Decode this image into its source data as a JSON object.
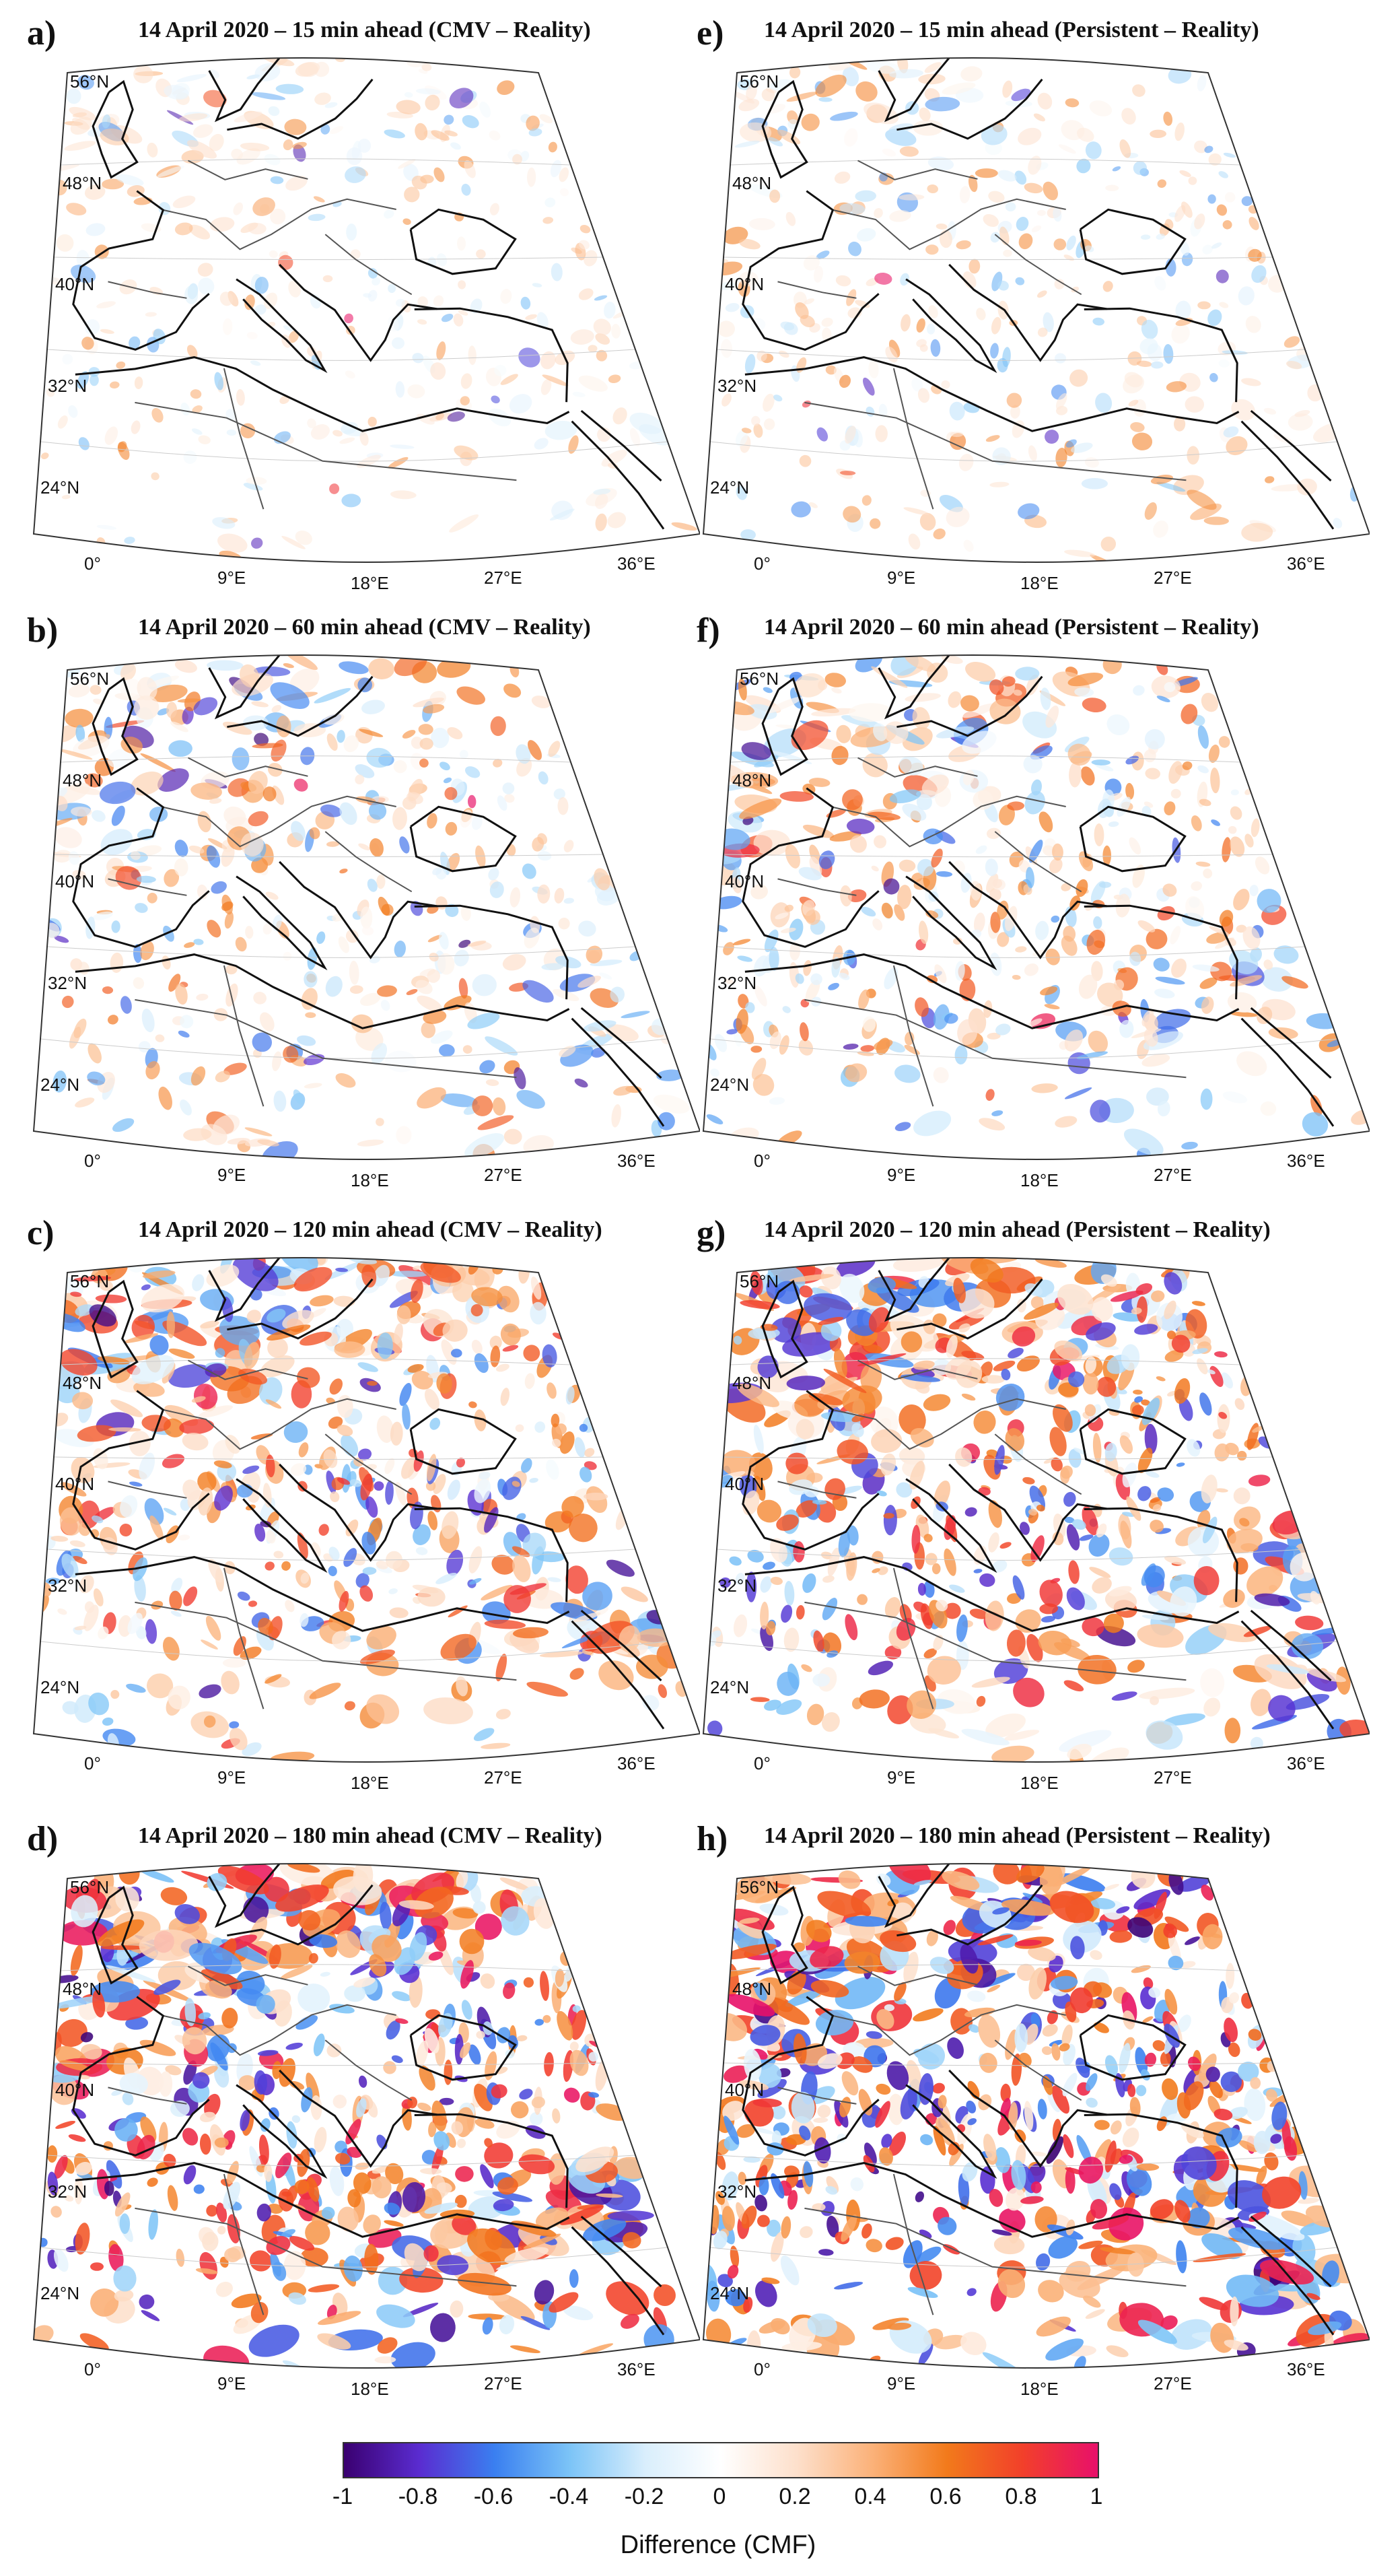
{
  "panels": [
    {
      "letter": "a)",
      "title": "14 April 2020 – 15 min ahead (CMV – Reality)",
      "intensity": 0.25
    },
    {
      "letter": "b)",
      "title": "14 April 2020 – 60 min ahead (CMV – Reality)",
      "intensity": 0.5
    },
    {
      "letter": "c)",
      "title": "14 April 2020 – 120 min ahead (CMV – Reality)",
      "intensity": 0.75
    },
    {
      "letter": "d)",
      "title": "14 April 2020 – 180 min ahead (CMV – Reality)",
      "intensity": 0.95
    },
    {
      "letter": "e)",
      "title": "14 April 2020 – 15 min ahead (Persistent – Reality)",
      "intensity": 0.3
    },
    {
      "letter": "f)",
      "title": "14 April 2020 – 60 min ahead (Persistent – Reality)",
      "intensity": 0.6
    },
    {
      "letter": "g)",
      "title": "14 April 2020 – 120 min ahead (Persistent – Reality)",
      "intensity": 0.85
    },
    {
      "letter": "h)",
      "title": "14 April 2020 – 180 min ahead (Persistent – Reality)",
      "intensity": 1.0
    }
  ],
  "lat_labels": [
    "56°N",
    "48°N",
    "40°N",
    "32°N",
    "24°N"
  ],
  "lon_labels": [
    "0°",
    "9°E",
    "18°E",
    "27°E",
    "36°E"
  ],
  "colorbar": {
    "ticks": [
      "-1",
      "-0.8",
      "-0.6",
      "-0.4",
      "-0.2",
      "0",
      "0.2",
      "0.4",
      "0.6",
      "0.8",
      "1"
    ],
    "label": "Difference (CMF)",
    "range": [
      -1,
      1
    ],
    "colors": [
      "#3a0070",
      "#5a2cd0",
      "#3a7ff0",
      "#7cc4f7",
      "#d9eefc",
      "#ffffff",
      "#fde0cc",
      "#fbb27a",
      "#f27a1b",
      "#f2402a",
      "#e8106a"
    ]
  }
}
